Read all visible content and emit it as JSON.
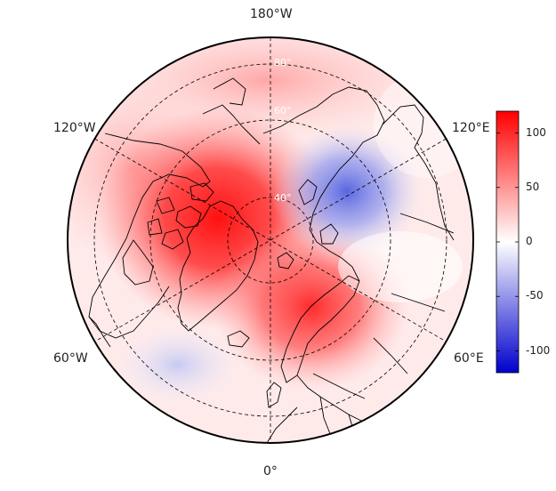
{
  "map": {
    "projection": "north-polar-stereographic",
    "center_longitude_bottom": "0°",
    "longitude_labels": [
      {
        "name": "lon-label-180w",
        "text": "180°W"
      },
      {
        "name": "lon-label-120w",
        "text": "120°W"
      },
      {
        "name": "lon-label-120e",
        "text": "120°E"
      },
      {
        "name": "lon-label-60w",
        "text": "60°W"
      },
      {
        "name": "lon-label-60e",
        "text": "60°E"
      },
      {
        "name": "lon-label-0",
        "text": "0°"
      }
    ],
    "latitude_labels": [
      "40°",
      "60°",
      "80°"
    ],
    "gridline_style": "dashed",
    "anomaly_field": {
      "description_units": "none shown",
      "features": [
        {
          "sign": "positive",
          "region": "Canadian Arctic / Greenland",
          "peak": 100
        },
        {
          "sign": "positive",
          "region": "Scandinavia / Northern Europe",
          "peak": 80
        },
        {
          "sign": "negative",
          "region": "Eastern Siberia",
          "peak": -60
        },
        {
          "sign": "negative",
          "region": "North Atlantic south of Greenland",
          "peak": -20
        },
        {
          "sign": "positive",
          "region": "Alaska / North Pacific",
          "peak": 30
        }
      ]
    }
  },
  "colorbar": {
    "min": -120,
    "max": 120,
    "ticks": [
      "100",
      "50",
      "0",
      "-50",
      "-100"
    ],
    "tick_values": [
      100,
      50,
      0,
      -50,
      -100
    ],
    "colors": {
      "low": "#0000cc",
      "mid": "#ffffff",
      "high": "#ff0000"
    }
  }
}
